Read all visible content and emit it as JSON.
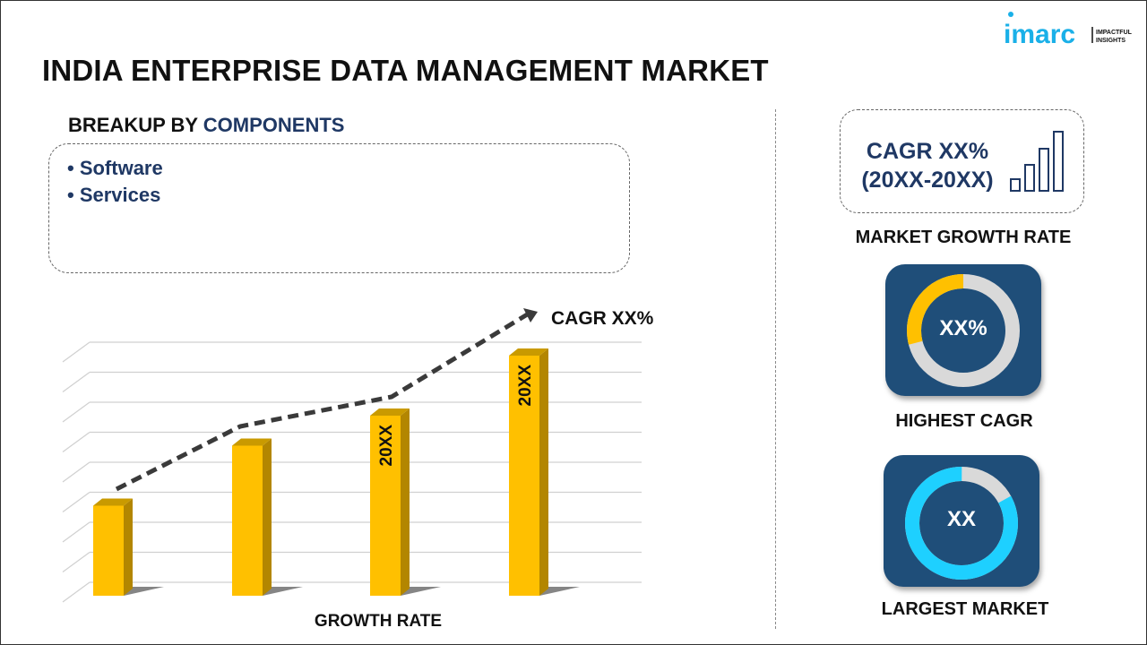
{
  "title": "INDIA ENTERPRISE DATA MANAGEMENT MARKET",
  "logo": {
    "brand": "imarc",
    "tagline_1": "IMPACTFUL",
    "tagline_2": "INSIGHTS",
    "color": "#1ab0e8"
  },
  "breakup": {
    "prefix": "BREAKUP BY ",
    "highlight": "COMPONENTS",
    "items": [
      "• Software",
      "• Services"
    ]
  },
  "chart_data": {
    "type": "bar",
    "categories": [
      "",
      "",
      "",
      ""
    ],
    "values": [
      3,
      5,
      6,
      8
    ],
    "bar_labels": [
      "",
      "",
      "20XX",
      "20XX"
    ],
    "trend_annotation": "CAGR XX%",
    "xlabel": "GROWTH RATE",
    "ylabel": "",
    "ylim": [
      0,
      8.5
    ],
    "grid": true,
    "bar_color": "#ffc000"
  },
  "growth": {
    "cagr_line1": "CAGR XX%",
    "cagr_line2": "(20XX-20XX)",
    "label": "MARKET GROWTH RATE"
  },
  "highest": {
    "value": "XX%",
    "label": "HIGHEST CAGR",
    "fill_fraction": 0.29,
    "color": "#ffc000"
  },
  "largest": {
    "value": "XX",
    "label": "LARGEST MARKET",
    "fill_fraction": 0.83,
    "color": "#1ed0ff"
  }
}
